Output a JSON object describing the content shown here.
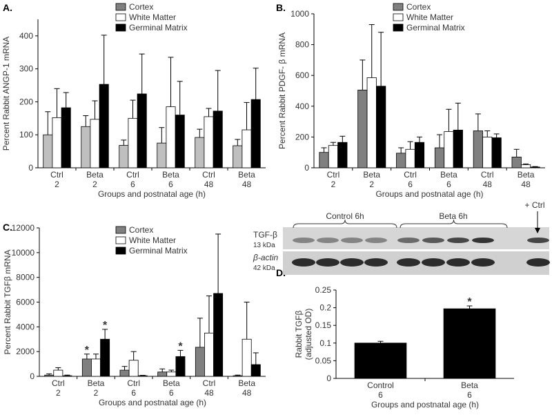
{
  "chart_data": [
    {
      "type": "bar",
      "panel_label": "A.",
      "ylabel": "Percent Rabbit ANGP-1 mRNA",
      "xlabel": "Groups and postnatal age (h)",
      "categories": [
        [
          "Ctrl",
          "2"
        ],
        [
          "Beta",
          "2"
        ],
        [
          "Ctrl",
          "6"
        ],
        [
          "Beta",
          "6"
        ],
        [
          "Ctrl",
          "48"
        ],
        [
          "Beta",
          "48"
        ]
      ],
      "ylim": [
        0,
        450
      ],
      "yticks": [
        0,
        100,
        200,
        300,
        400
      ],
      "series": [
        {
          "name": "Cortex",
          "color": "#bfbfbf",
          "legend_color": "#808080",
          "values": [
            100,
            125,
            68,
            75,
            92,
            67
          ],
          "errors": [
            70,
            33,
            16,
            47,
            25,
            19
          ]
        },
        {
          "name": "White Matter",
          "color": "#ffffff",
          "values": [
            152,
            147,
            150,
            185,
            155,
            115
          ],
          "errors": [
            88,
            56,
            55,
            150,
            25,
            83
          ]
        },
        {
          "name": "Germinal Matrix",
          "color": "#000000",
          "values": [
            182,
            253,
            224,
            160,
            172,
            207
          ],
          "errors": [
            46,
            149,
            121,
            102,
            123,
            95
          ]
        }
      ]
    },
    {
      "type": "bar",
      "panel_label": "B.",
      "ylabel": "Percent Rabbit PDGF- β mRNA",
      "xlabel": "Groups and postnatal age (h)",
      "categories": [
        [
          "Ctrl",
          "2"
        ],
        [
          "Beta",
          "2"
        ],
        [
          "Ctrl",
          "6"
        ],
        [
          "Beta",
          "6"
        ],
        [
          "Ctrl",
          "48"
        ],
        [
          "Beta",
          "48"
        ]
      ],
      "ylim": [
        0,
        1000
      ],
      "yticks": [
        0,
        200,
        400,
        600,
        800,
        1000
      ],
      "series": [
        {
          "name": "Cortex",
          "color": "#808080",
          "values": [
            100,
            505,
            95,
            130,
            240,
            70
          ],
          "errors": [
            30,
            195,
            35,
            85,
            110,
            50
          ]
        },
        {
          "name": "White Matter",
          "color": "#ffffff",
          "values": [
            145,
            585,
            120,
            235,
            200,
            20
          ],
          "errors": [
            20,
            345,
            50,
            145,
            40,
            5
          ]
        },
        {
          "name": "Germinal Matrix",
          "color": "#000000",
          "values": [
            165,
            530,
            165,
            245,
            195,
            5
          ],
          "errors": [
            40,
            350,
            35,
            175,
            25,
            3
          ]
        }
      ]
    },
    {
      "type": "bar",
      "panel_label": "C.",
      "ylabel": "Percent Rabbit TGFβ mRNA",
      "xlabel": "Groups and postnatal age (h)",
      "categories": [
        [
          "Ctrl",
          "2"
        ],
        [
          "Beta",
          "2"
        ],
        [
          "Ctrl",
          "6"
        ],
        [
          "Beta",
          "6"
        ],
        [
          "Ctrl",
          "48"
        ],
        [
          "Beta",
          "48"
        ]
      ],
      "ylim": [
        0,
        12000
      ],
      "yticks": [
        0,
        2000,
        4000,
        6000,
        8000,
        10000,
        12000
      ],
      "series": [
        {
          "name": "Cortex",
          "color": "#808080",
          "values": [
            100,
            1400,
            500,
            350,
            2350,
            50
          ],
          "errors": [
            100,
            400,
            300,
            250,
            2350,
            50
          ],
          "annotations": [
            null,
            "*",
            null,
            null,
            null,
            null
          ]
        },
        {
          "name": "White Matter",
          "color": "#ffffff",
          "values": [
            500,
            1400,
            1300,
            350,
            3500,
            3000
          ],
          "errors": [
            200,
            400,
            700,
            150,
            3000,
            3000
          ]
        },
        {
          "name": "Germinal Matrix",
          "color": "#000000",
          "values": [
            50,
            3000,
            50,
            1600,
            6700,
            950
          ],
          "errors": [
            50,
            800,
            30,
            500,
            4800,
            950
          ],
          "annotations": [
            null,
            "*",
            null,
            "*",
            null,
            null
          ]
        }
      ]
    },
    {
      "type": "bar",
      "panel_label": "D.",
      "ylabel": [
        "Rabbit TGFβ",
        "(adjusted OD)"
      ],
      "xlabel": "Groups and postnatal age (h)",
      "categories": [
        [
          "Control",
          "6"
        ],
        [
          "Beta",
          "6"
        ]
      ],
      "ylim": [
        0,
        0.25
      ],
      "yticks": [
        0,
        0.05,
        0.1,
        0.15,
        0.2,
        0.25
      ],
      "series": [
        {
          "color": "#000000",
          "values": [
            0.1,
            0.197
          ],
          "errors": [
            0.005,
            0.008
          ],
          "annotations": [
            null,
            "*"
          ]
        }
      ]
    }
  ],
  "blot": {
    "groups": [
      "Control 6h",
      "Beta 6h"
    ],
    "positive": "+ Ctrl",
    "rows": [
      {
        "name": "TGF-β",
        "size": "13 kDa"
      },
      {
        "name": "β-actin",
        "size": "42 kDa"
      }
    ]
  }
}
